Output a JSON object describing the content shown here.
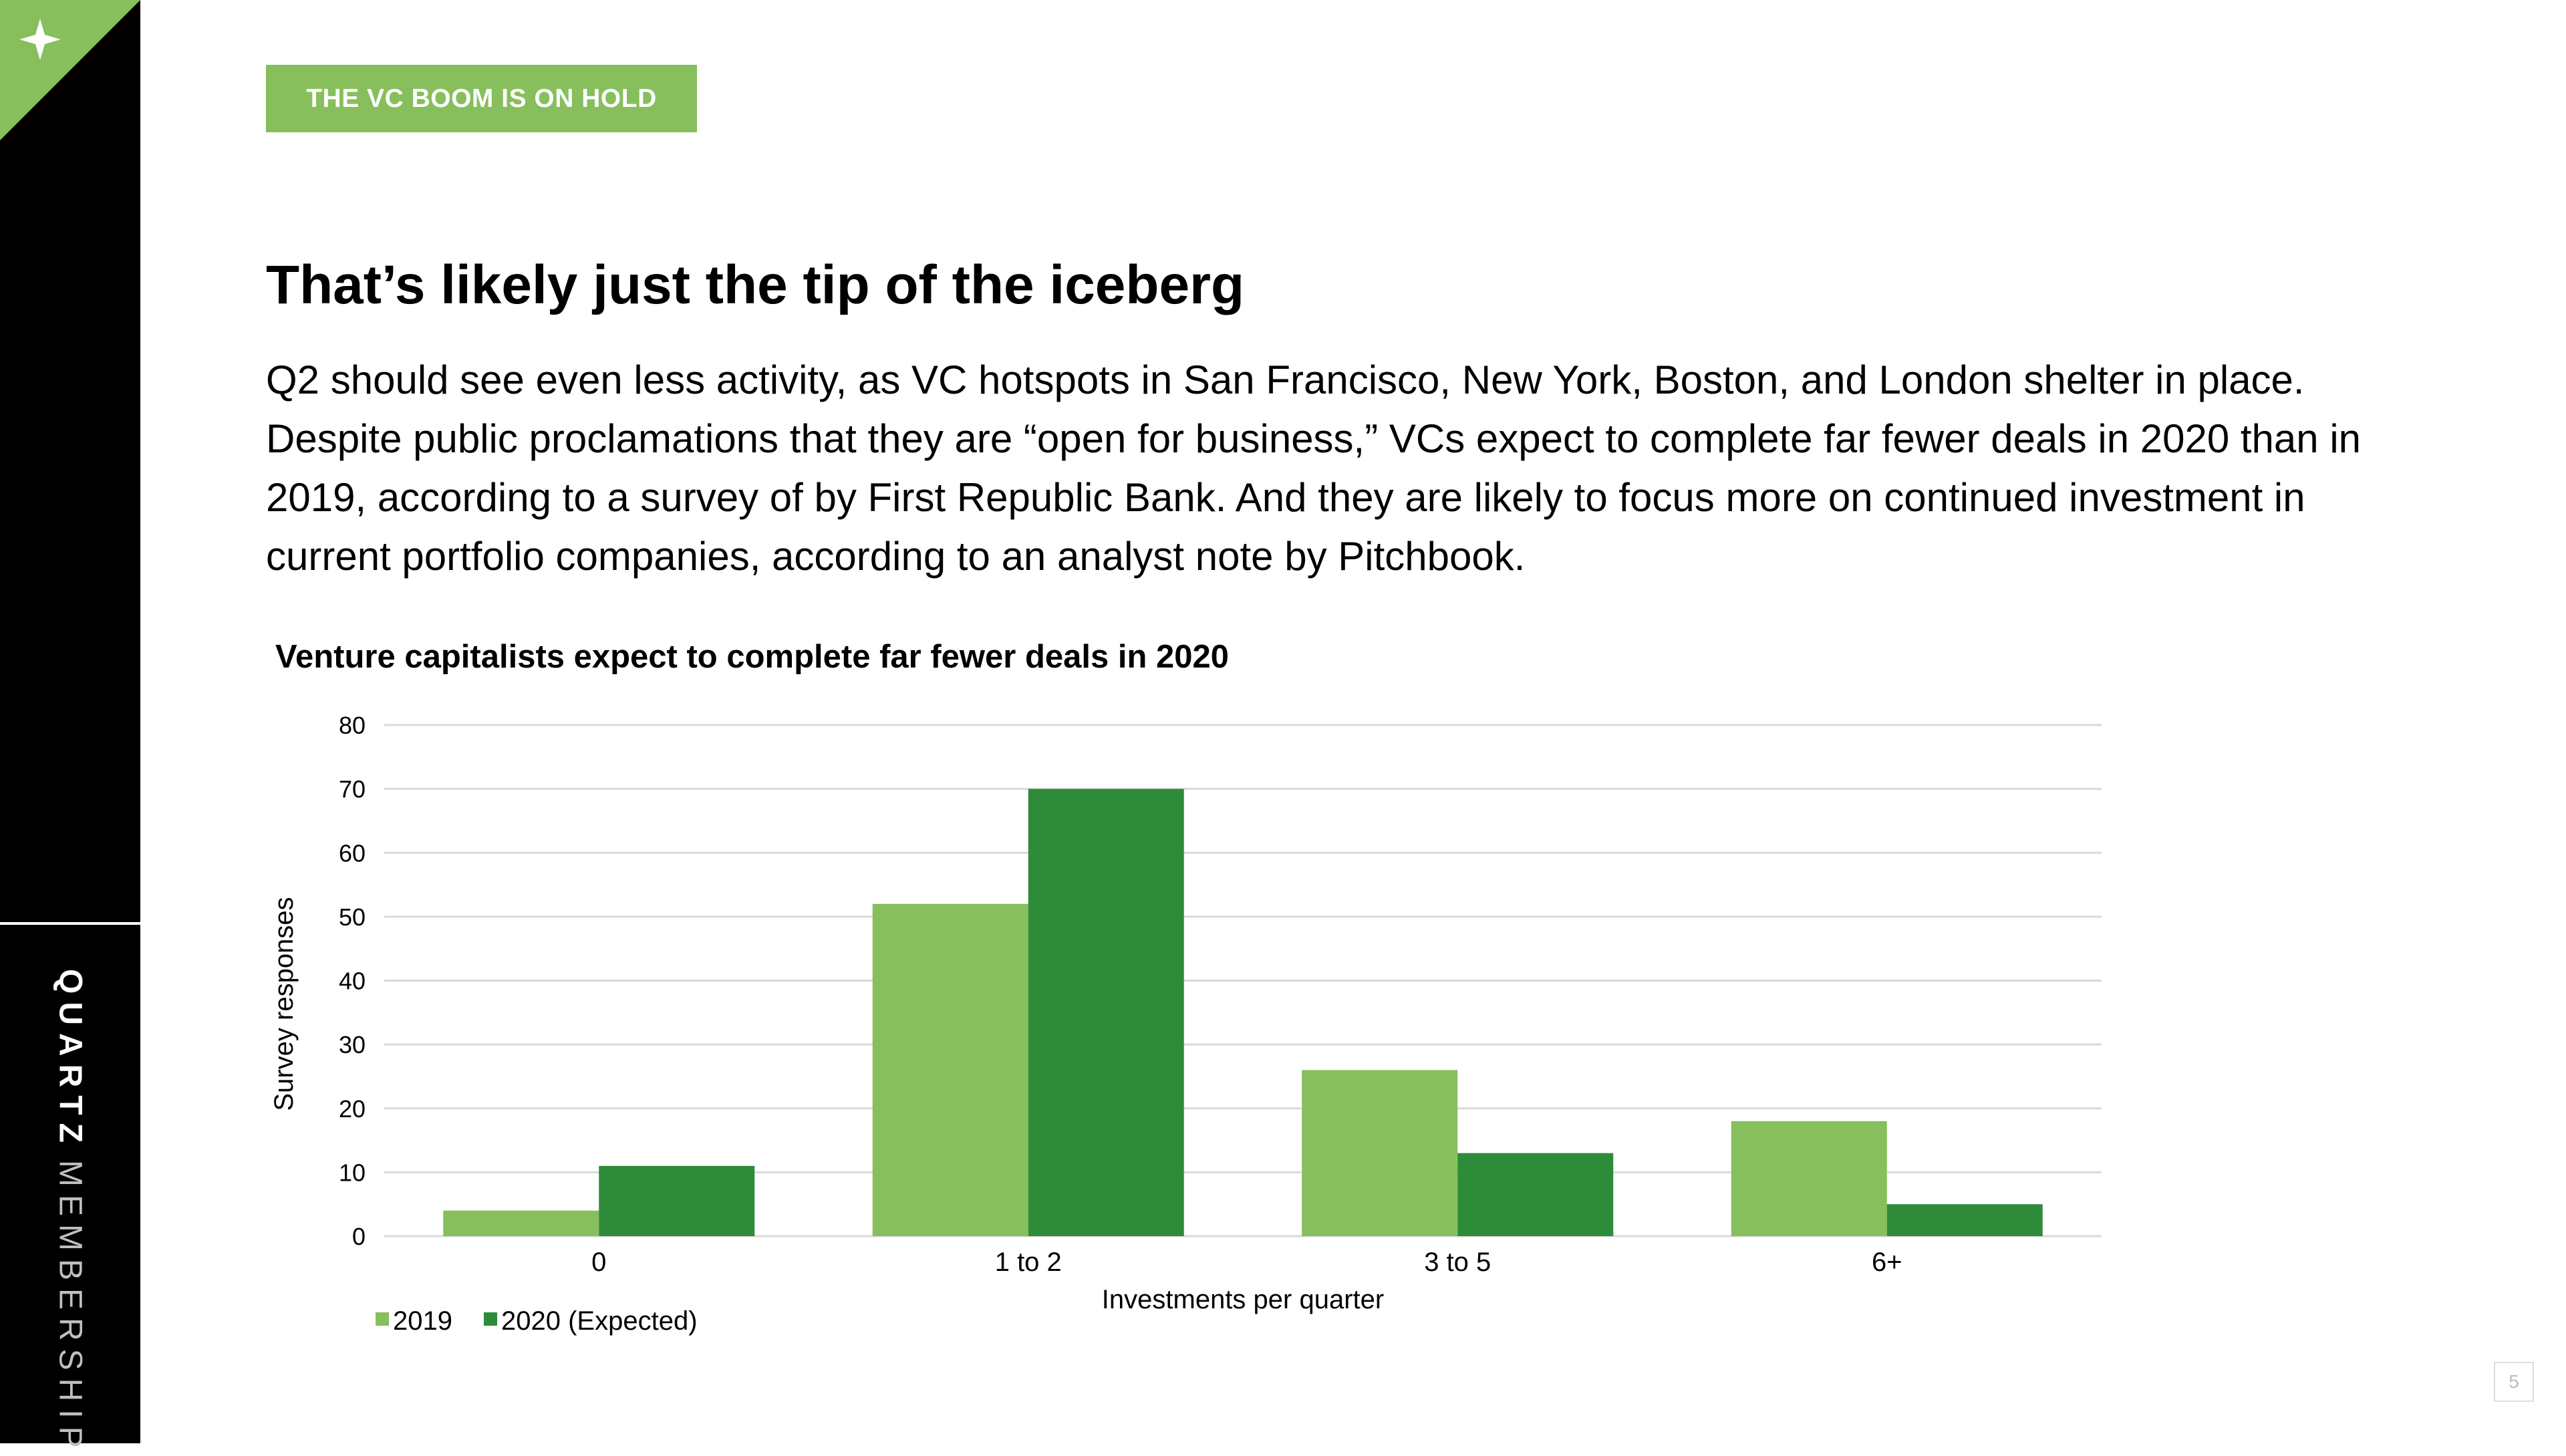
{
  "sidebar": {
    "brand_primary": "QUARTZ",
    "brand_secondary": "MEMBERSHIP"
  },
  "tag": "THE VC BOOM IS ON HOLD",
  "headline": "That’s likely just the tip of the iceberg",
  "body": "Q2 should see even less activity, as VC hotspots in San Francisco, New York, Boston, and London shelter in place. Despite public proclamations that they are “open for business,” VCs expect to complete far fewer deals in 2020 than in 2019, according to a survey of by First Republic Bank. And they are likely to focus more on continued investment in current portfolio companies, according to an analyst note by Pitchbook.",
  "page_number": "5",
  "colors": {
    "accent": "#86bf5b",
    "series_2019": "#86bf5b",
    "series_2020": "#2e8b3a"
  },
  "chart_data": {
    "type": "bar",
    "title": "Venture capitalists expect to complete far fewer deals in 2020",
    "xlabel": "Investments per quarter",
    "ylabel": "Survey responses",
    "categories": [
      "0",
      "1 to 2",
      "3 to 5",
      "6+"
    ],
    "series": [
      {
        "name": "2019",
        "values": [
          4,
          52,
          26,
          18
        ]
      },
      {
        "name": "2020 (Expected)",
        "values": [
          11,
          70,
          13,
          5
        ]
      }
    ],
    "ylim": [
      0,
      80
    ],
    "yticks": [
      0,
      10,
      20,
      30,
      40,
      50,
      60,
      70,
      80
    ],
    "grid": true,
    "legend_position": "bottom-left"
  }
}
